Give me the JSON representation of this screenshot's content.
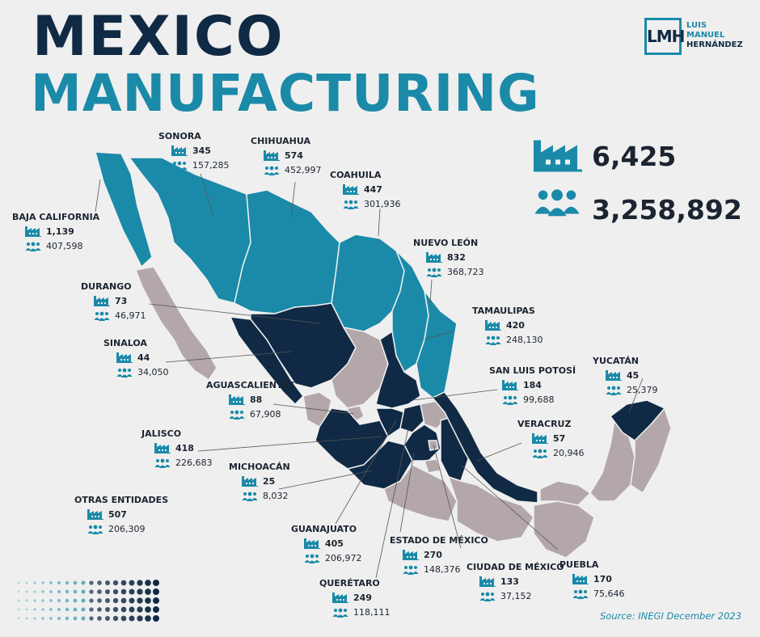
{
  "title": {
    "line1": "MEXICO",
    "line2": "MANUFACTURING"
  },
  "logo": {
    "mark": "LMH",
    "line1": "LUIS",
    "line2": "MANUEL",
    "line3": "HERNÁNDEZ"
  },
  "totals": {
    "factories": "6,425",
    "employees": "3,258,892"
  },
  "states": [
    {
      "id": "sonora",
      "name": "SONORA",
      "factories": "345",
      "employees": "157,285"
    },
    {
      "id": "chihuahua",
      "name": "CHIHUAHUA",
      "factories": "574",
      "employees": "452,997"
    },
    {
      "id": "coahuila",
      "name": "COAHUILA",
      "factories": "447",
      "employees": "301,936"
    },
    {
      "id": "baja",
      "name": "BAJA CALIFORNIA",
      "factories": "1,139",
      "employees": "407,598"
    },
    {
      "id": "nuevoleon",
      "name": "NUEVO LEÓN",
      "factories": "832",
      "employees": "368,723"
    },
    {
      "id": "durango",
      "name": "DURANGO",
      "factories": "73",
      "employees": "46,971"
    },
    {
      "id": "tamaulipas",
      "name": "TAMAULIPAS",
      "factories": "420",
      "employees": "248,130"
    },
    {
      "id": "sinaloa",
      "name": "SINALOA",
      "factories": "44",
      "employees": "34,050"
    },
    {
      "id": "yucatan",
      "name": "YUCATÁN",
      "factories": "45",
      "employees": "25,379"
    },
    {
      "id": "slp",
      "name": "SAN LUIS POTOSÍ",
      "factories": "184",
      "employees": "99,688"
    },
    {
      "id": "ags",
      "name": "AGUASCALIENTES",
      "factories": "88",
      "employees": "67,908"
    },
    {
      "id": "veracruz",
      "name": "VERACRUZ",
      "factories": "57",
      "employees": "20,946"
    },
    {
      "id": "jalisco",
      "name": "JALISCO",
      "factories": "418",
      "employees": "226,683"
    },
    {
      "id": "michoacan",
      "name": "MICHOACÁN",
      "factories": "25",
      "employees": "8,032"
    },
    {
      "id": "otras",
      "name": "OTRAS ENTIDADES",
      "factories": "507",
      "employees": "206,309"
    },
    {
      "id": "guanajuato",
      "name": "GUANAJUATO",
      "factories": "405",
      "employees": "206,972"
    },
    {
      "id": "edomex",
      "name": "ESTADO DE MÉXICO",
      "factories": "270",
      "employees": "148,376"
    },
    {
      "id": "cdmx",
      "name": "CIUDAD DE MÉXICO",
      "factories": "133",
      "employees": "37,152"
    },
    {
      "id": "puebla",
      "name": "PUEBLA",
      "factories": "170",
      "employees": "75,646"
    },
    {
      "id": "queretaro",
      "name": "QUERÉTARO",
      "factories": "249",
      "employees": "118,111"
    }
  ],
  "colors": {
    "dark_navy": "#102a45",
    "teal": "#1a8aa8",
    "gray_mauve": "#b3a7aa",
    "background": "#efefef"
  },
  "source": "Source: INEGI December 2023"
}
